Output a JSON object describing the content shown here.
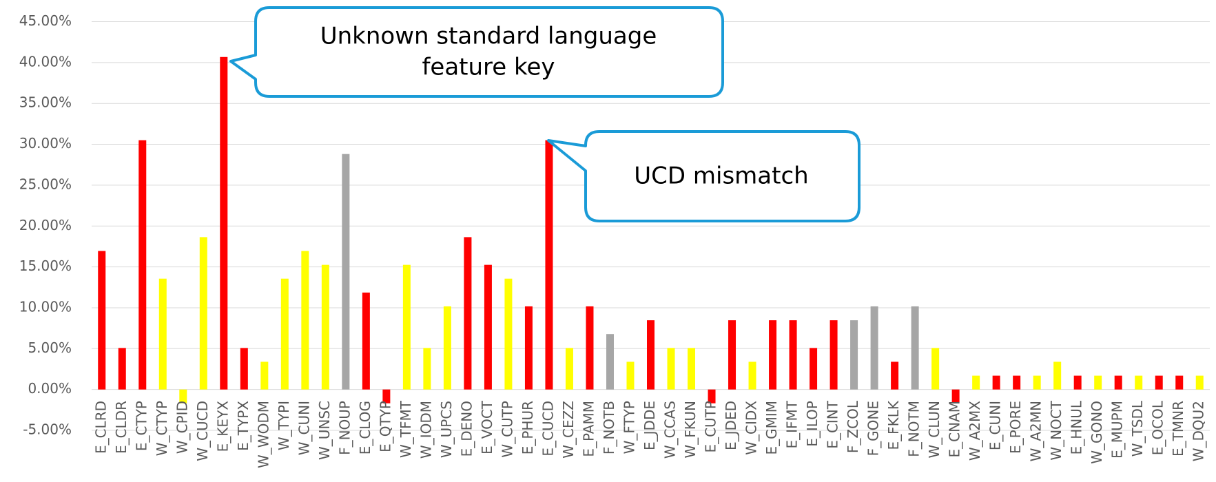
{
  "chart_data": {
    "type": "bar",
    "categories": [
      "E_CLRD",
      "E_CLDR",
      "E_CTYP",
      "W_CTYP",
      "W_CPID",
      "W_CUCD",
      "E_KEYX",
      "E_TYPX",
      "W_WODM",
      "W_TYPI",
      "W_CUNI",
      "W_UNSC",
      "F_NOUP",
      "E_CLOG",
      "E_QTYP",
      "W_TFMT",
      "W_IODM",
      "W_UPCS",
      "E_DENO",
      "E_VOCT",
      "W_CUTP",
      "E_PHUR",
      "E_CUCD",
      "W_CEZZ",
      "E_PAMM",
      "F_NOTB",
      "W_FTYP",
      "E_JDDE",
      "W_CCAS",
      "W_FKUN",
      "E_CUTP",
      "E_JDED",
      "W_CIDX",
      "E_GMIM",
      "E_IFMT",
      "E_ILOP",
      "E_CINT",
      "F_ZCOL",
      "F_GONE",
      "E_FKLK",
      "F_NOTM",
      "W_CLUN",
      "E_CNAM",
      "W_A2MX",
      "E_CUNI",
      "E_PORE",
      "W_A2MN",
      "W_NOCT",
      "E_HNUL",
      "W_GONO",
      "E_MUPM",
      "W_TSDL",
      "E_OCOL",
      "E_TMNR",
      "W_DQU2"
    ],
    "values": [
      16.95,
      5.08,
      30.5,
      13.56,
      -1.69,
      18.64,
      40.68,
      5.08,
      3.39,
      13.56,
      16.95,
      15.25,
      28.81,
      11.86,
      -1.69,
      15.25,
      5.08,
      10.17,
      18.64,
      15.25,
      13.56,
      10.17,
      30.5,
      5.08,
      10.17,
      6.78,
      3.39,
      8.47,
      5.08,
      5.08,
      -1.69,
      8.47,
      3.39,
      8.47,
      8.47,
      5.08,
      8.47,
      8.47,
      10.17,
      3.39,
      10.17,
      5.08,
      -1.69,
      1.69,
      1.69,
      1.69,
      1.69,
      3.39,
      1.69,
      1.69,
      1.69,
      1.69,
      1.69,
      1.69,
      1.69
    ],
    "colors": [
      "#ff0000",
      "#ff0000",
      "#ff0000",
      "#ffff00",
      "#ffff00",
      "#ffff00",
      "#ff0000",
      "#ff0000",
      "#ffff00",
      "#ffff00",
      "#ffff00",
      "#ffff00",
      "#a6a6a6",
      "#ff0000",
      "#ff0000",
      "#ffff00",
      "#ffff00",
      "#ffff00",
      "#ff0000",
      "#ff0000",
      "#ffff00",
      "#ff0000",
      "#ff0000",
      "#ffff00",
      "#ff0000",
      "#a6a6a6",
      "#ffff00",
      "#ff0000",
      "#ffff00",
      "#ffff00",
      "#ff0000",
      "#ff0000",
      "#ffff00",
      "#ff0000",
      "#ff0000",
      "#ff0000",
      "#ff0000",
      "#a6a6a6",
      "#a6a6a6",
      "#ff0000",
      "#a6a6a6",
      "#ffff00",
      "#ff0000",
      "#ffff00",
      "#ff0000",
      "#ff0000",
      "#ffff00",
      "#ffff00",
      "#ff0000",
      "#ffff00",
      "#ff0000",
      "#ffff00",
      "#ff0000",
      "#ff0000",
      "#ffff00"
    ],
    "ylim": [
      -5,
      45
    ],
    "yticks": [
      {
        "value": -5,
        "label": "-5.00%"
      },
      {
        "value": 0,
        "label": "0.00%"
      },
      {
        "value": 5,
        "label": "5.00%"
      },
      {
        "value": 10,
        "label": "10.00%"
      },
      {
        "value": 15,
        "label": "15.00%"
      },
      {
        "value": 20,
        "label": "20.00%"
      },
      {
        "value": 25,
        "label": "25.00%"
      },
      {
        "value": 30,
        "label": "30.00%"
      },
      {
        "value": 35,
        "label": "35.00%"
      },
      {
        "value": 40,
        "label": "40.00%"
      },
      {
        "value": 45,
        "label": "45.00%"
      }
    ],
    "grid": true,
    "annotations": [
      {
        "lines": [
          "Unknown standard language",
          "feature key"
        ]
      },
      {
        "lines": [
          "UCD mismatch"
        ]
      }
    ]
  }
}
